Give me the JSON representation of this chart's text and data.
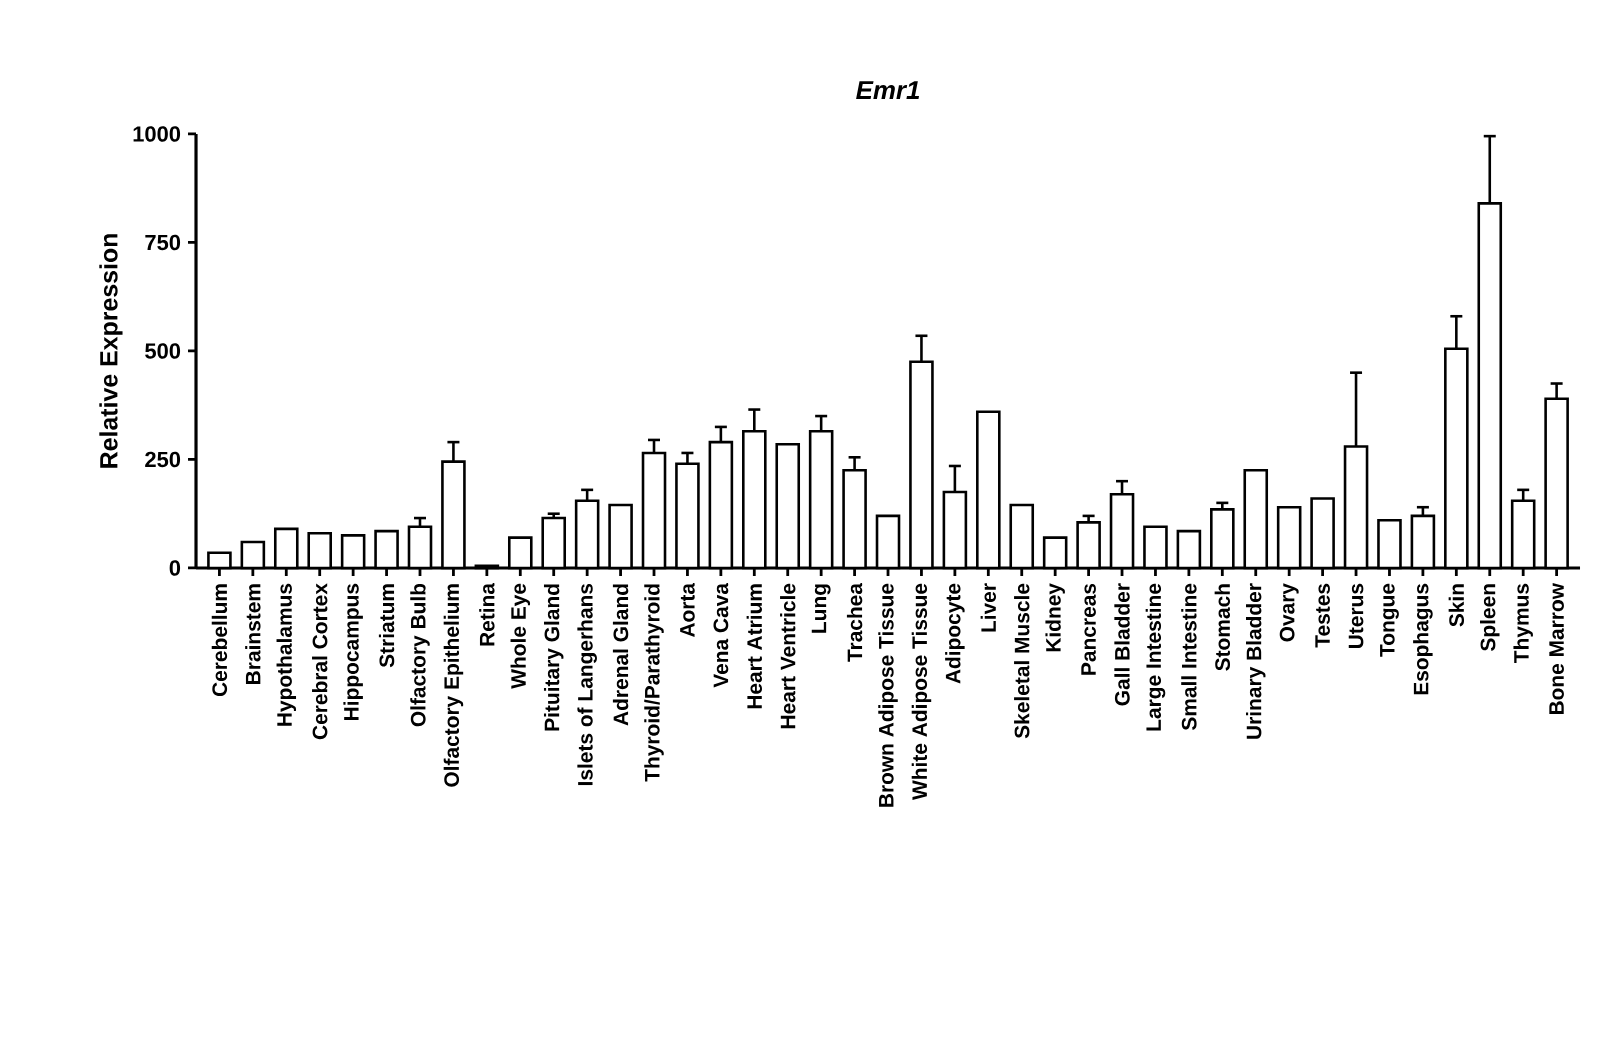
{
  "chart_data": {
    "type": "bar",
    "title": "Emr1",
    "ylabel": "Relative Expression",
    "categories": [
      "Cerebellum",
      "Brainstem",
      "Hypothalamus",
      "Cerebral Cortex",
      "Hippocampus",
      "Striatum",
      "Olfactory Bulb",
      "Olfactory Epithelium",
      "Retina",
      "Whole Eye",
      "Pituitary Gland",
      "Islets of Langerhans",
      "Adrenal Gland",
      "Thyroid/Parathyroid",
      "Aorta",
      "Vena Cava",
      "Heart Atrium",
      "Heart Ventricle",
      "Lung",
      "Trachea",
      "Brown Adipose Tissue",
      "White Adipose Tissue",
      "Adipocyte",
      "Liver",
      "Skeletal Muscle",
      "Kidney",
      "Pancreas",
      "Gall Bladder",
      "Large Intestine",
      "Small Intestine",
      "Stomach",
      "Urinary Bladder",
      "Ovary",
      "Testes",
      "Uterus",
      "Tongue",
      "Esophagus",
      "Skin",
      "Spleen",
      "Thymus",
      "Bone Marrow"
    ],
    "values": [
      35,
      60,
      90,
      80,
      75,
      85,
      95,
      245,
      5,
      70,
      115,
      155,
      145,
      265,
      240,
      290,
      315,
      285,
      315,
      225,
      120,
      475,
      175,
      360,
      145,
      70,
      105,
      170,
      95,
      85,
      135,
      225,
      140,
      160,
      280,
      110,
      120,
      505,
      840,
      155,
      390
    ],
    "errors": [
      null,
      null,
      null,
      null,
      null,
      null,
      20,
      45,
      null,
      null,
      10,
      25,
      null,
      30,
      25,
      35,
      50,
      null,
      35,
      30,
      null,
      60,
      60,
      null,
      null,
      null,
      15,
      30,
      null,
      null,
      15,
      null,
      null,
      null,
      170,
      null,
      20,
      75,
      155,
      25,
      35
    ],
    "color": "#000000",
    "ylim": [
      0,
      1000
    ],
    "yticks": [
      0,
      250,
      500,
      750,
      1000
    ],
    "grid": false
  }
}
